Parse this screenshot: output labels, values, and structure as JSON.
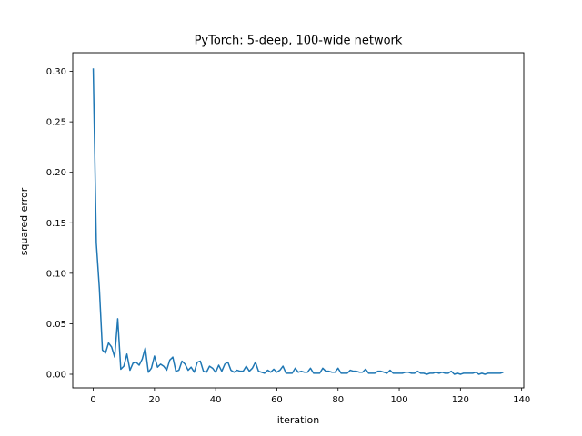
{
  "chart_data": {
    "type": "line",
    "title": "PyTorch: 5-deep, 100-wide network",
    "xlabel": "iteration",
    "ylabel": "squared error",
    "xlim": [
      -6.7,
      140.7
    ],
    "ylim": [
      -0.0135,
      0.3185
    ],
    "xticks": [
      0,
      20,
      40,
      60,
      80,
      100,
      120,
      140
    ],
    "yticks": [
      0.0,
      0.05,
      0.1,
      0.15,
      0.2,
      0.25,
      0.3
    ],
    "ytick_format": 2,
    "grid": false,
    "legend": "none",
    "line_color": "#1f77b4",
    "series": [
      {
        "x": [
          0,
          1,
          2,
          3,
          4,
          5,
          6,
          7,
          8,
          9,
          10,
          11,
          12,
          13,
          14,
          15,
          16,
          17,
          18,
          19,
          20,
          21,
          22,
          23,
          24,
          25,
          26,
          27,
          28,
          29,
          30,
          31,
          32,
          33,
          34,
          35,
          36,
          37,
          38,
          39,
          40,
          41,
          42,
          43,
          44,
          45,
          46,
          47,
          48,
          49,
          50,
          51,
          52,
          53,
          54,
          55,
          56,
          57,
          58,
          59,
          60,
          61,
          62,
          63,
          64,
          65,
          66,
          67,
          68,
          69,
          70,
          71,
          72,
          73,
          74,
          75,
          76,
          77,
          78,
          79,
          80,
          81,
          82,
          83,
          84,
          85,
          86,
          87,
          88,
          89,
          90,
          91,
          92,
          93,
          94,
          95,
          96,
          97,
          98,
          99,
          100,
          101,
          102,
          103,
          104,
          105,
          106,
          107,
          108,
          109,
          110,
          111,
          112,
          113,
          114,
          115,
          116,
          117,
          118,
          119,
          120,
          121,
          122,
          123,
          124,
          125,
          126,
          127,
          128,
          129,
          130,
          131,
          132,
          133,
          134
        ],
        "y": [
          0.303,
          0.13,
          0.085,
          0.024,
          0.021,
          0.031,
          0.027,
          0.017,
          0.055,
          0.005,
          0.008,
          0.02,
          0.004,
          0.011,
          0.012,
          0.009,
          0.015,
          0.026,
          0.002,
          0.006,
          0.018,
          0.007,
          0.01,
          0.008,
          0.004,
          0.014,
          0.017,
          0.003,
          0.004,
          0.013,
          0.01,
          0.004,
          0.007,
          0.002,
          0.012,
          0.013,
          0.003,
          0.002,
          0.008,
          0.006,
          0.002,
          0.009,
          0.003,
          0.01,
          0.012,
          0.004,
          0.002,
          0.004,
          0.003,
          0.003,
          0.008,
          0.003,
          0.006,
          0.012,
          0.003,
          0.002,
          0.001,
          0.004,
          0.002,
          0.005,
          0.002,
          0.004,
          0.008,
          0.001,
          0.001,
          0.001,
          0.006,
          0.002,
          0.003,
          0.002,
          0.002,
          0.006,
          0.001,
          0.001,
          0.001,
          0.006,
          0.003,
          0.003,
          0.002,
          0.002,
          0.006,
          0.001,
          0.001,
          0.001,
          0.004,
          0.003,
          0.003,
          0.002,
          0.002,
          0.005,
          0.001,
          0.001,
          0.001,
          0.003,
          0.003,
          0.002,
          0.001,
          0.004,
          0.001,
          0.001,
          0.001,
          0.001,
          0.002,
          0.002,
          0.001,
          0.001,
          0.003,
          0.001,
          0.001,
          0.0,
          0.001,
          0.001,
          0.002,
          0.001,
          0.002,
          0.001,
          0.001,
          0.003,
          0.0,
          0.001,
          0.0,
          0.001,
          0.001,
          0.001,
          0.001,
          0.002,
          0.0,
          0.001,
          0.0,
          0.001,
          0.001,
          0.001,
          0.001,
          0.001,
          0.002
        ]
      }
    ]
  }
}
